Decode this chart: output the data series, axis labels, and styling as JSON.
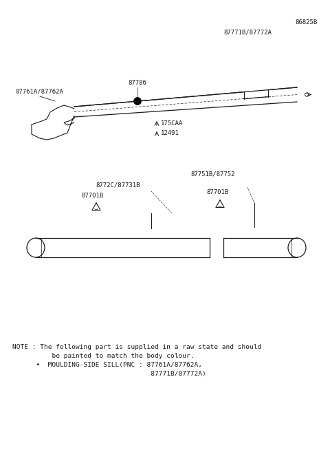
{
  "bg_color": "#ffffff",
  "lc": "#1a1a1a",
  "title_ref": "86825B",
  "label_upper_part": "87771B/87772A",
  "label_clip": "87786",
  "label_end_left": "87761A/87762A",
  "label_dim1": "175CAA",
  "label_dim2": "12491",
  "label_lower_group_left": "8772C/87731B",
  "label_lower_group_right": "87751B/87752",
  "label_lower_left": "87701B",
  "label_lower_right": "87701B",
  "note1": "NOTE : The following part is supplied in a raw state and should",
  "note2": "          be painted to match the body colour.",
  "note3": "      •  MOULDING-SIDE SILL(PNC : 87761A/87762A,",
  "note4": "                                   87771B/87772A)"
}
